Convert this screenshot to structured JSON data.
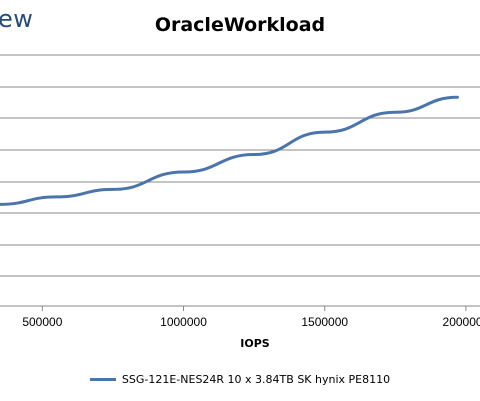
{
  "header": {
    "logo_text": "ew"
  },
  "chart_data": {
    "type": "line",
    "title": "OracleWorkload",
    "xlabel": "IOPS",
    "ylabel": "",
    "x_ticks": [
      500000,
      1000000,
      1500000,
      2000000
    ],
    "x_tick_labels": [
      "500000",
      "1000000",
      "1500000",
      "2000000"
    ],
    "xlim": [
      350000,
      2050000
    ],
    "ylim": [
      0,
      10
    ],
    "grid": true,
    "legend_position": "bottom",
    "series": [
      {
        "name": "SSG-121E-NES24R 10 x 3.84TB SK hynix PE8110",
        "color": "#4a74ac",
        "x": [
          350000,
          550000,
          750000,
          1000000,
          1250000,
          1500000,
          1750000,
          1970000
        ],
        "y": [
          3.6,
          3.9,
          4.2,
          4.9,
          5.6,
          6.5,
          7.3,
          7.9
        ]
      }
    ]
  }
}
